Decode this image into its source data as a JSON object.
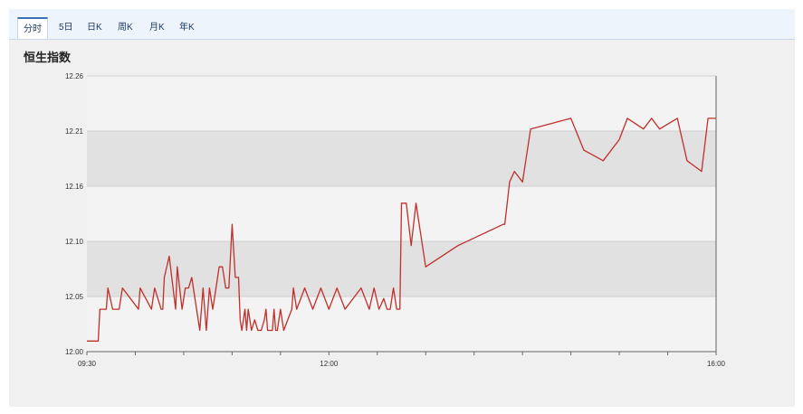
{
  "tabs": [
    {
      "label": "分时",
      "active": true
    },
    {
      "label": "5日",
      "active": false
    },
    {
      "label": "日K",
      "active": false
    },
    {
      "label": "周K",
      "active": false
    },
    {
      "label": "月K",
      "active": false
    },
    {
      "label": "年K",
      "active": false
    }
  ],
  "chart_data": {
    "type": "line",
    "title": "恒生指数",
    "xlabel": "",
    "ylabel": "",
    "ylim": [
      12.0,
      12.26
    ],
    "yticks": [
      "12.00",
      "12.05",
      "12.10",
      "12.16",
      "12.21",
      "12.26"
    ],
    "xticks": [
      "09:30",
      "12:00",
      "16:00"
    ],
    "x_range_minutes": [
      0,
      390
    ],
    "grid": "alternating horizontal bands",
    "line_color": "#c0302b",
    "band_color": "#e1e1e1",
    "series": [
      {
        "x": [
          0,
          7,
          8,
          12,
          13,
          16,
          20,
          22,
          27,
          32,
          33,
          40,
          42,
          46,
          47,
          48,
          51,
          55,
          56,
          59,
          61,
          63,
          65,
          70,
          72,
          74,
          76,
          78,
          80,
          82,
          84,
          86,
          88,
          90,
          92,
          94,
          95,
          96,
          98,
          99,
          100,
          102,
          104,
          106,
          108,
          110,
          111,
          112,
          115,
          116,
          117,
          118,
          120,
          122,
          127,
          128,
          130,
          135,
          140,
          145,
          150,
          155,
          160,
          170,
          175,
          178,
          181,
          184,
          186,
          188,
          190,
          192,
          194,
          195,
          198,
          201,
          204,
          210,
          230,
          258,
          259,
          262,
          265,
          270,
          275,
          300,
          308,
          320,
          330,
          335,
          345,
          350,
          355,
          366,
          372,
          381,
          385,
          390
        ],
        "values": [
          12.01,
          12.01,
          12.04,
          12.04,
          12.06,
          12.04,
          12.04,
          12.06,
          12.05,
          12.04,
          12.06,
          12.04,
          12.06,
          12.04,
          12.04,
          12.07,
          12.09,
          12.04,
          12.08,
          12.04,
          12.06,
          12.06,
          12.07,
          12.02,
          12.06,
          12.02,
          12.06,
          12.04,
          12.06,
          12.08,
          12.08,
          12.06,
          12.06,
          12.12,
          12.07,
          12.07,
          12.03,
          12.02,
          12.04,
          12.02,
          12.04,
          12.02,
          12.03,
          12.02,
          12.02,
          12.03,
          12.04,
          12.02,
          12.02,
          12.04,
          12.02,
          12.02,
          12.04,
          12.02,
          12.04,
          12.06,
          12.04,
          12.06,
          12.04,
          12.06,
          12.04,
          12.06,
          12.04,
          12.06,
          12.04,
          12.06,
          12.04,
          12.05,
          12.04,
          12.04,
          12.06,
          12.04,
          12.04,
          12.14,
          12.14,
          12.1,
          12.14,
          12.08,
          12.1,
          12.12,
          12.12,
          12.16,
          12.17,
          12.16,
          12.21,
          12.22,
          12.19,
          12.18,
          12.2,
          12.22,
          12.21,
          12.22,
          12.21,
          12.22,
          12.18,
          12.17,
          12.22,
          12.22
        ]
      }
    ]
  }
}
